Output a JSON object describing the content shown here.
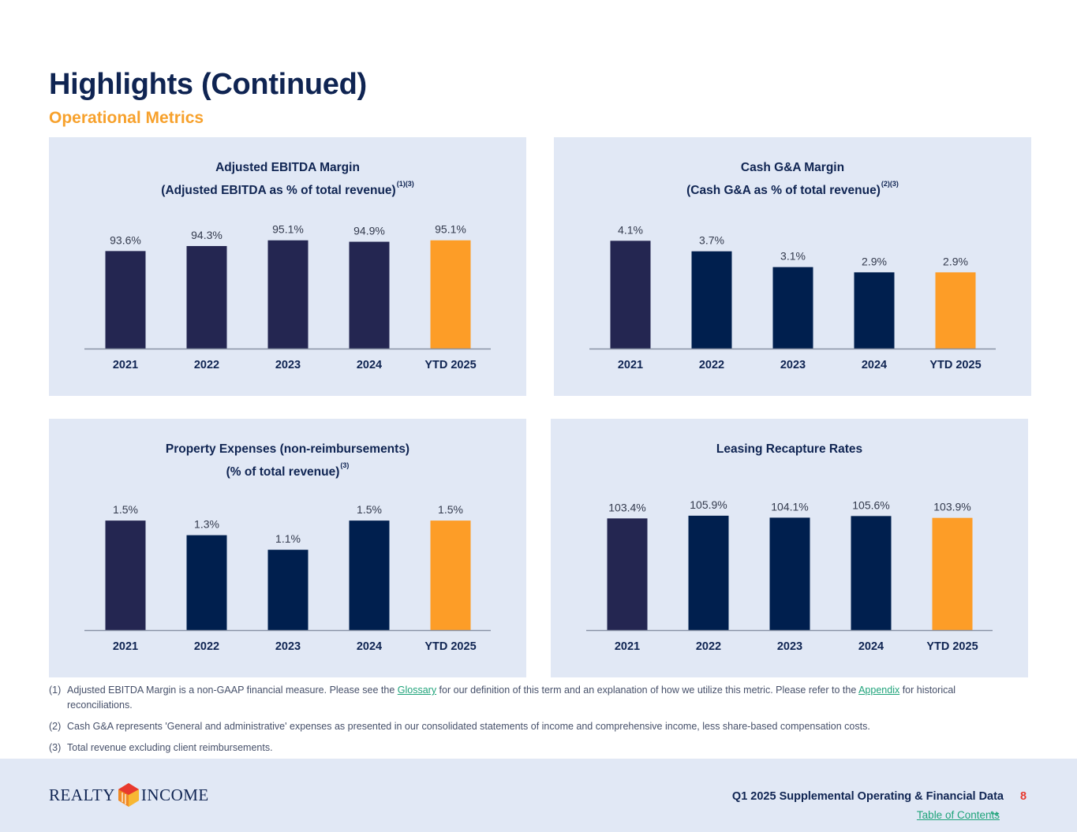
{
  "header": {
    "title": "Highlights (Continued)",
    "subtitle": "Operational Metrics"
  },
  "colors": {
    "panel_bg": "#e1e8f5",
    "bar_primary": "#242651",
    "bar_navy": "#001f4e",
    "bar_highlight": "#fd9d27",
    "axis": "#8a93a6",
    "text_dark": "#0f2452",
    "text_value": "#333a4d",
    "link": "#1fa37a",
    "accent_orange": "#f7a12c",
    "page_number": "#e8392e"
  },
  "chart_data": [
    {
      "type": "bar",
      "title": [
        "Adjusted EBITDA Margin",
        "(Adjusted EBITDA as % of total revenue)"
      ],
      "title_sup": "(1)(3)",
      "categories": [
        "2021",
        "2022",
        "2023",
        "2024",
        "YTD 2025"
      ],
      "values": [
        93.6,
        94.3,
        95.1,
        94.9,
        95.1
      ],
      "value_labels": [
        "93.6%",
        "94.3%",
        "95.1%",
        "94.9%",
        "95.1%"
      ],
      "bar_colors": [
        "#242651",
        "#242651",
        "#242651",
        "#242651",
        "#fd9d27"
      ],
      "ylim": [
        80,
        96.5
      ],
      "xlabel": "",
      "ylabel": "",
      "grid": false,
      "legend": "none"
    },
    {
      "type": "bar",
      "title": [
        "Cash G&A Margin",
        "(Cash G&A as % of total revenue)"
      ],
      "title_sup": "(2)(3)",
      "categories": [
        "2021",
        "2022",
        "2023",
        "2024",
        "YTD 2025"
      ],
      "values": [
        4.1,
        3.7,
        3.1,
        2.9,
        2.9
      ],
      "value_labels": [
        "4.1%",
        "3.7%",
        "3.1%",
        "2.9%",
        "2.9%"
      ],
      "bar_colors": [
        "#242651",
        "#001f4e",
        "#001f4e",
        "#001f4e",
        "#fd9d27"
      ],
      "ylim": [
        0,
        4.5
      ],
      "xlabel": "",
      "ylabel": "",
      "grid": false,
      "legend": "none"
    },
    {
      "type": "bar",
      "title": [
        "Property Expenses (non-reimbursements)",
        "(% of total revenue)"
      ],
      "title_sup": "(3)",
      "categories": [
        "2021",
        "2022",
        "2023",
        "2024",
        "YTD 2025"
      ],
      "values": [
        1.5,
        1.3,
        1.1,
        1.5,
        1.5
      ],
      "value_labels": [
        "1.5%",
        "1.3%",
        "1.1%",
        "1.5%",
        "1.5%"
      ],
      "bar_colors": [
        "#242651",
        "#001f4e",
        "#001f4e",
        "#001f4e",
        "#fd9d27"
      ],
      "ylim": [
        0,
        1.62
      ],
      "xlabel": "",
      "ylabel": "",
      "grid": false,
      "legend": "none"
    },
    {
      "type": "bar",
      "title": [
        "Leasing Recapture Rates"
      ],
      "title_sup": "",
      "categories": [
        "2021",
        "2022",
        "2023",
        "2024",
        "YTD 2025"
      ],
      "values": [
        103.4,
        105.9,
        104.1,
        105.6,
        103.9
      ],
      "value_labels": [
        "103.4%",
        "105.9%",
        "104.1%",
        "105.6%",
        "103.9%"
      ],
      "bar_colors": [
        "#242651",
        "#001f4e",
        "#001f4e",
        "#001f4e",
        "#fd9d27"
      ],
      "ylim": [
        0,
        109.5
      ],
      "xlabel": "",
      "ylabel": "",
      "grid": false,
      "legend": "none"
    }
  ],
  "footnotes": [
    {
      "num": "(1)",
      "text_before": "Adjusted EBITDA Margin is a non-GAAP financial measure. Please see the ",
      "link1": "Glossary",
      "text_middle": " for our definition of this term and an explanation of how we utilize this metric. Please refer to the ",
      "link2": "Appendix",
      "text_after": " for historical reconciliations."
    },
    {
      "num": "(2)",
      "text": "Cash G&A represents 'General and administrative' expenses as presented in our consolidated statements of income and comprehensive income, less share-based compensation costs."
    },
    {
      "num": "(3)",
      "text": "Total revenue excluding client reimbursements."
    }
  ],
  "footer": {
    "logo_left": "REALTY",
    "logo_right": "INCOME",
    "title": "Q1 2025 Supplemental Operating & Financial Data",
    "page_number": "8",
    "toc_link": "Table of Contents",
    "toc_arrow": "↪"
  }
}
